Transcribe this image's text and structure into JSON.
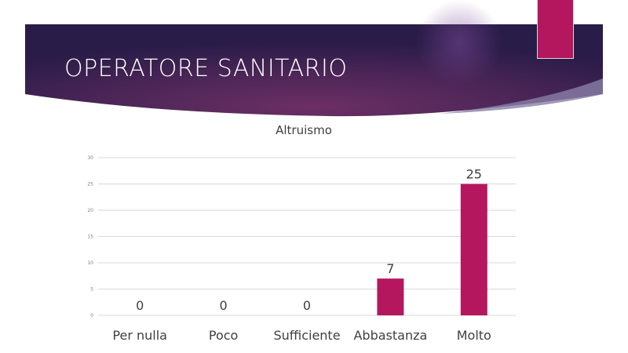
{
  "slide": {
    "title": "OPERATORE SANITARIO"
  },
  "colors": {
    "banner_dark": "#2b1d4a",
    "banner_mid": "#6a2e63",
    "accent": "#b5175f",
    "bar": "#b5175f",
    "grid": "#d9d9d9",
    "text": "#404040"
  },
  "chart_data": {
    "type": "bar",
    "title": "Altruismo",
    "categories": [
      "Per nulla",
      "Poco",
      "Sufficiente",
      "Abbastanza",
      "Molto"
    ],
    "values": [
      0,
      0,
      0,
      7,
      25
    ],
    "ylim": [
      0,
      30
    ],
    "yticks": [
      0,
      5,
      10,
      15,
      20,
      25,
      30
    ],
    "grid": true,
    "data_labels": true
  }
}
